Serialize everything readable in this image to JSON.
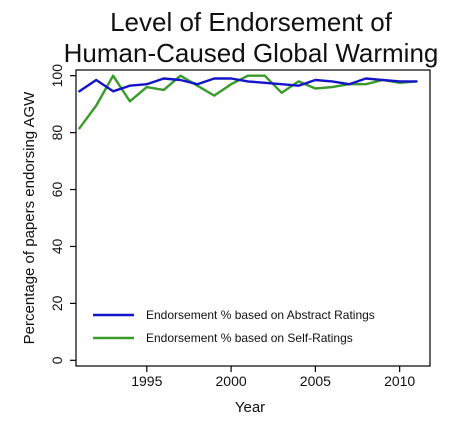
{
  "chart_data": {
    "type": "line",
    "title": "Level of Endorsement of Human-Caused Global Warming",
    "title_lines": [
      "Level of Endorsement of",
      "Human-Caused Global Warming"
    ],
    "xlabel": "Year",
    "ylabel": "Percentage of papers endorsing AGW",
    "xlim": [
      1990.8,
      2011.8
    ],
    "ylim": [
      -2,
      102
    ],
    "xticks": [
      1995,
      2000,
      2005,
      2010
    ],
    "xtick_labels": [
      "1995",
      "2000",
      "2005",
      "2010"
    ],
    "yticks": [
      0,
      20,
      40,
      60,
      80,
      100
    ],
    "ytick_labels": [
      "0",
      "20",
      "40",
      "60",
      "80",
      "100"
    ],
    "grid": false,
    "legend_position": "bottom-left",
    "series": [
      {
        "name": "Endorsement % based on Abstract Ratings",
        "color": "#1414c8",
        "x": [
          1991,
          1992,
          1993,
          1994,
          1995,
          1996,
          1997,
          1998,
          1999,
          2000,
          2001,
          2002,
          2003,
          2004,
          2005,
          2006,
          2007,
          2008,
          2009,
          2010,
          2011
        ],
        "y": [
          94.5,
          98.5,
          94.5,
          96.5,
          97,
          99,
          98.5,
          97,
          99,
          99,
          98,
          97.5,
          97,
          96.5,
          98.5,
          98,
          97,
          99,
          98.5,
          98,
          98
        ]
      },
      {
        "name": "Endorsement % based on Self-Ratings",
        "color": "#3a9a2a",
        "x": [
          1991,
          1992,
          1993,
          1994,
          1995,
          1996,
          1997,
          1998,
          1999,
          2000,
          2001,
          2002,
          2003,
          2004,
          2005,
          2006,
          2007,
          2008,
          2009,
          2010,
          2011
        ],
        "y": [
          81.5,
          89.5,
          100,
          91,
          96,
          95,
          100,
          96.5,
          93,
          97,
          100,
          100,
          94,
          98,
          95.5,
          96,
          97,
          97,
          98.5,
          97.5,
          98
        ]
      }
    ]
  }
}
